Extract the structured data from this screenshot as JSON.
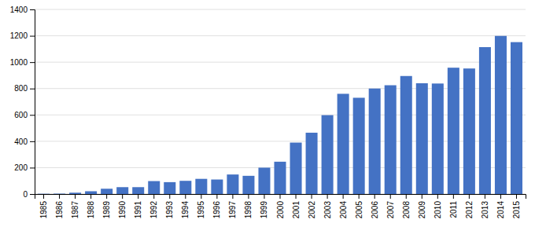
{
  "chart_data": {
    "type": "bar",
    "categories": [
      "1985",
      "1986",
      "1987",
      "1988",
      "1989",
      "1990",
      "1991",
      "1992",
      "1993",
      "1994",
      "1995",
      "1996",
      "1997",
      "1998",
      "1999",
      "2000",
      "2001",
      "2002",
      "2003",
      "2004",
      "2005",
      "2006",
      "2007",
      "2008",
      "2009",
      "2010",
      "2011",
      "2012",
      "2013",
      "2014",
      "2015"
    ],
    "values": [
      2,
      3,
      10,
      21,
      40,
      52,
      52,
      98,
      90,
      100,
      115,
      110,
      148,
      138,
      200,
      245,
      390,
      465,
      598,
      760,
      730,
      800,
      825,
      895,
      840,
      838,
      958,
      952,
      1114,
      1199,
      1152
    ],
    "color": "#4472C4",
    "ylim": [
      0,
      1400
    ],
    "yticks": [
      0,
      200,
      400,
      600,
      800,
      1000,
      1200,
      1400
    ],
    "grid": true
  }
}
